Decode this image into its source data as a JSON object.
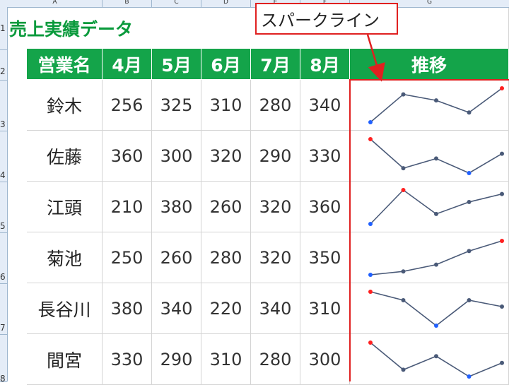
{
  "columns": [
    "A",
    "B",
    "C",
    "D",
    "E",
    "F",
    "G"
  ],
  "rows": [
    "1",
    "2",
    "3",
    "4",
    "5",
    "6",
    "7",
    "8"
  ],
  "sheet": {
    "title": "売上実績データ",
    "headers": [
      "営業名",
      "4月",
      "5月",
      "6月",
      "7月",
      "8月",
      "推移"
    ],
    "data": [
      {
        "name": "鈴木",
        "values": [
          256,
          325,
          310,
          280,
          340
        ]
      },
      {
        "name": "佐藤",
        "values": [
          360,
          300,
          320,
          290,
          330
        ]
      },
      {
        "name": "江頭",
        "values": [
          210,
          380,
          260,
          320,
          360
        ]
      },
      {
        "name": "菊池",
        "values": [
          250,
          260,
          280,
          320,
          350
        ]
      },
      {
        "name": "長谷川",
        "values": [
          380,
          340,
          220,
          340,
          310
        ]
      },
      {
        "name": "間宮",
        "values": [
          330,
          290,
          310,
          280,
          300
        ]
      }
    ]
  },
  "callout": {
    "label": "スパークライン"
  },
  "colors": {
    "header_bg": "#14a44a",
    "title": "#0a9a3c",
    "line": "#4a5a78",
    "high": "#ff2020",
    "low": "#2060ff",
    "callout_border": "#e02020"
  }
}
